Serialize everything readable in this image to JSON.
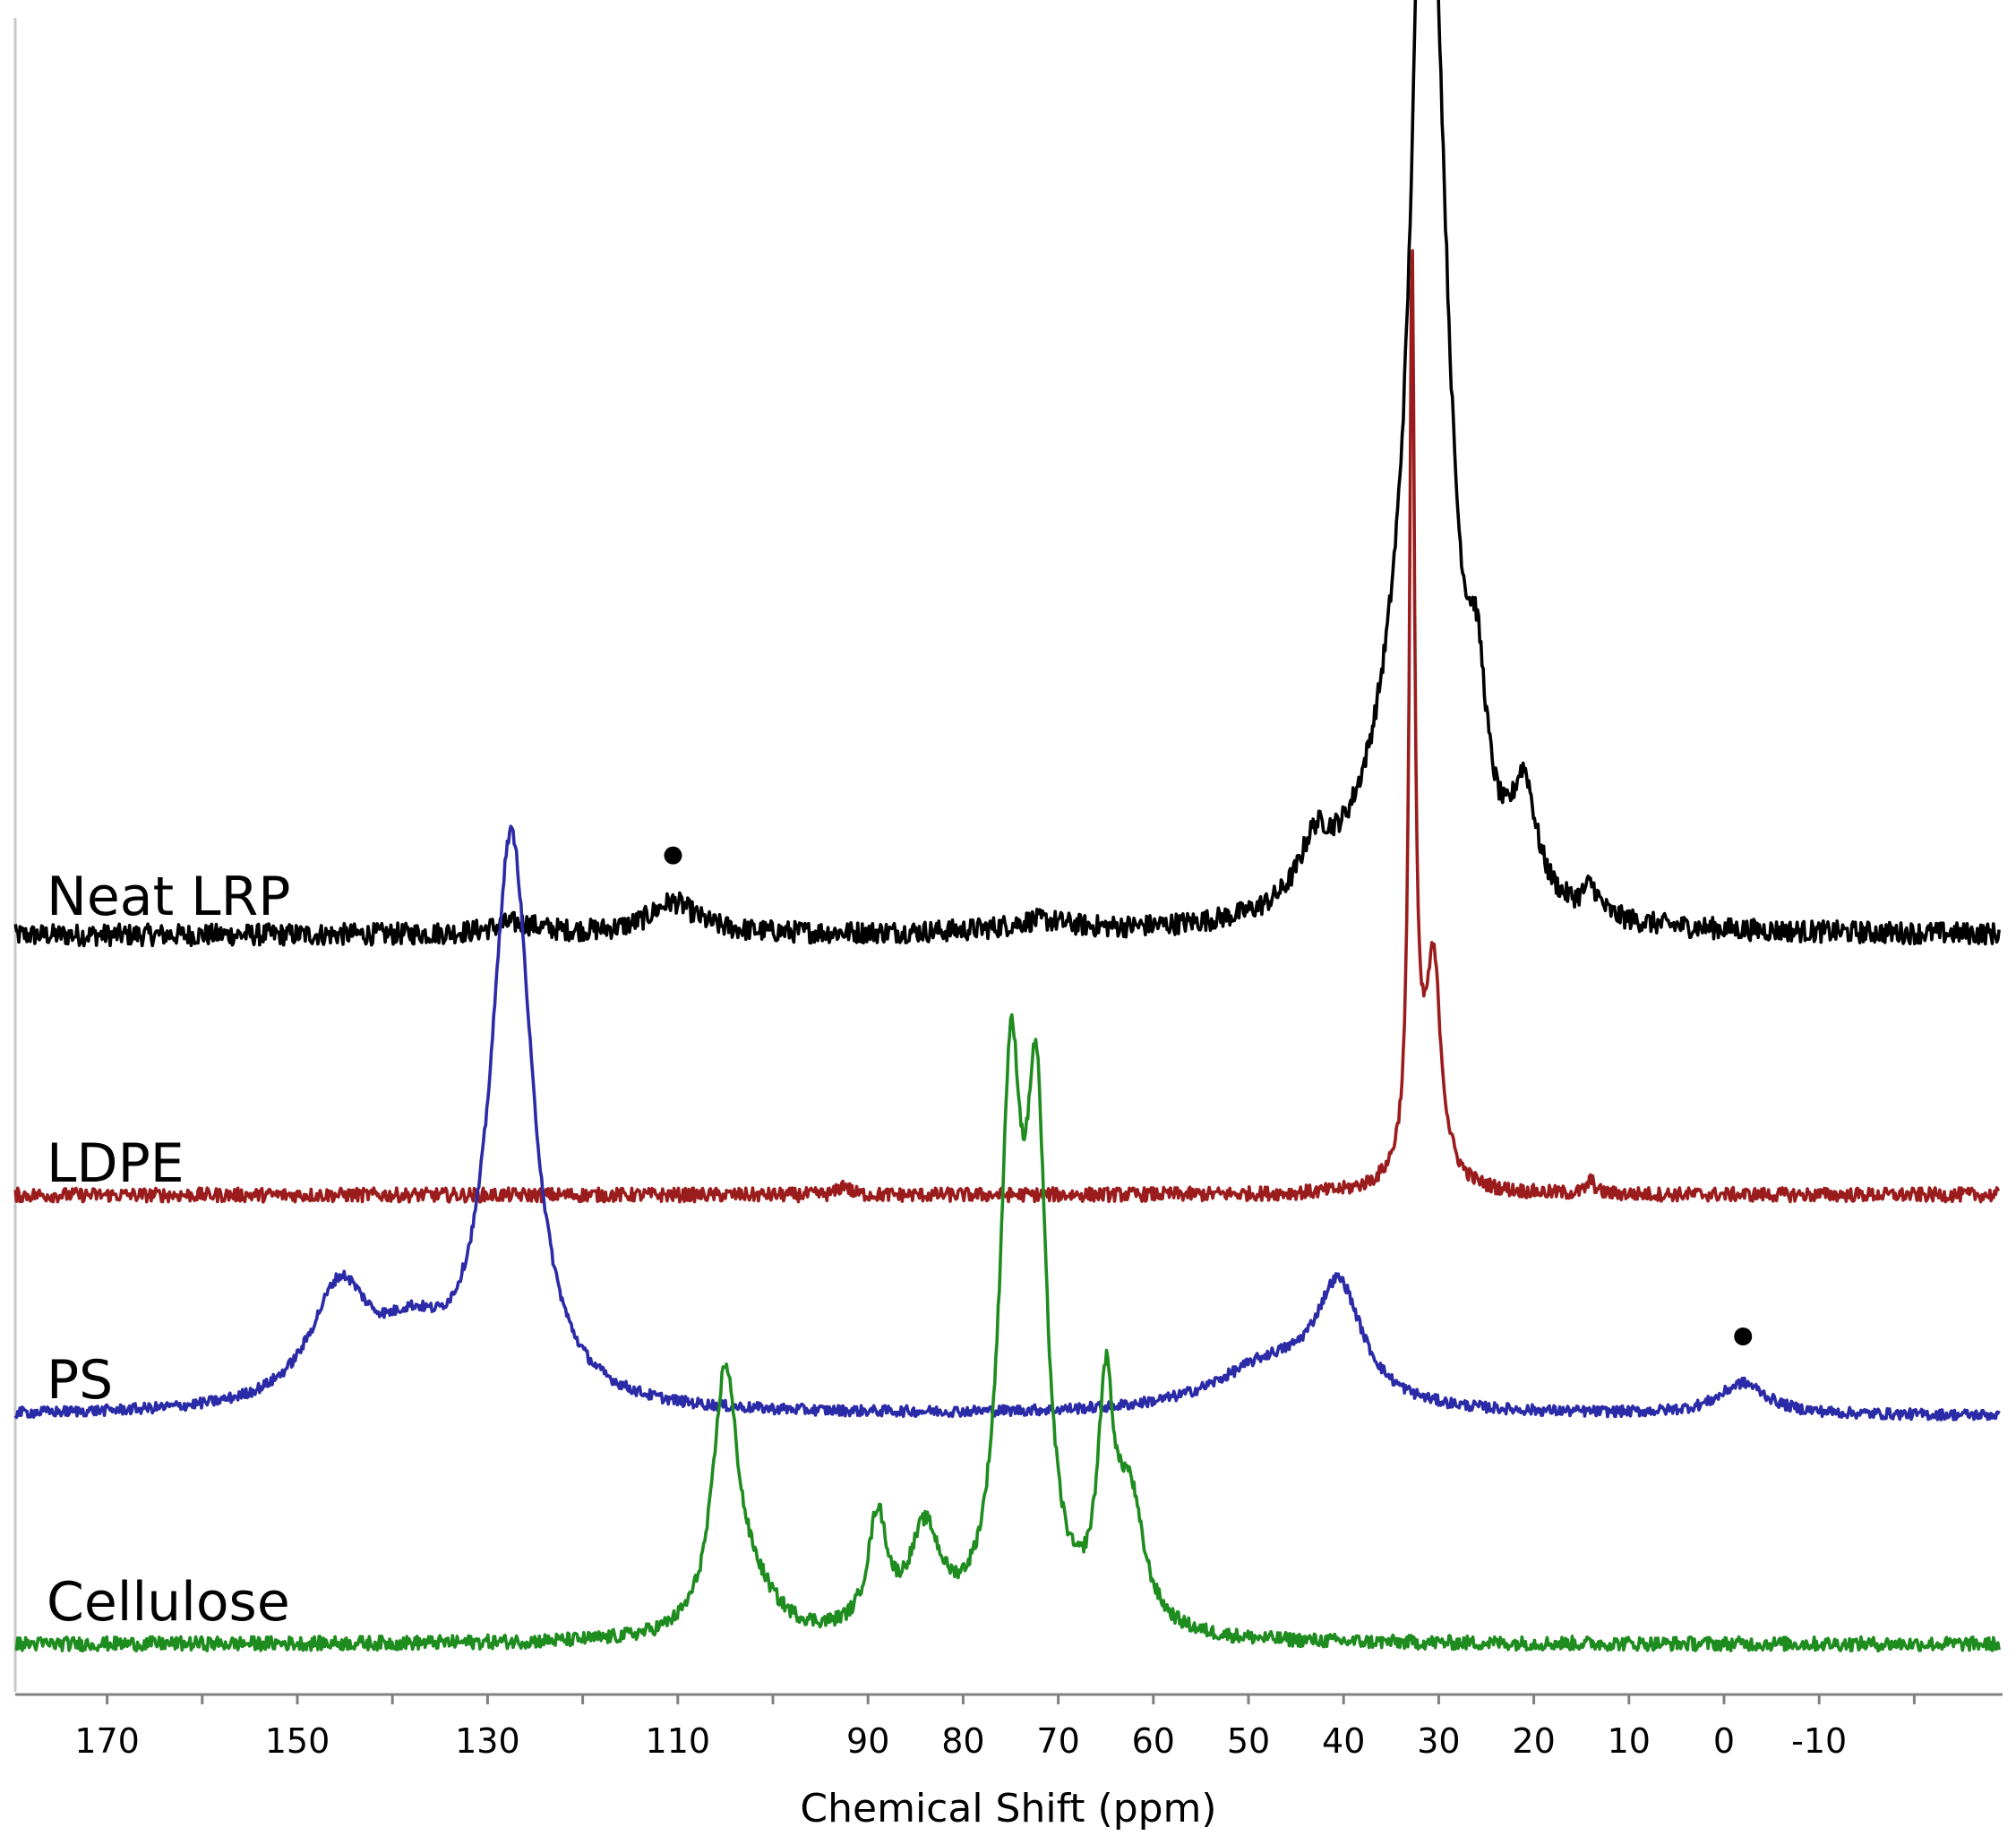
{
  "chart_data": {
    "type": "line",
    "title": "",
    "xlabel": "Chemical Shift (ppm)",
    "ylabel": "",
    "xlim": [
      180,
      -30
    ],
    "x_reversed": true,
    "grid": false,
    "legend": "none",
    "tick_labels": [
      "170",
      "150",
      "130",
      "110",
      "90",
      "80",
      "70",
      "60",
      "50",
      "40",
      "30",
      "20",
      "10",
      "0",
      "-10"
    ],
    "tick_values": [
      170,
      150,
      130,
      110,
      90,
      80,
      70,
      60,
      50,
      40,
      30,
      20,
      10,
      0,
      -10
    ],
    "series": [
      {
        "name": "Neat LRP",
        "color": "#000000",
        "noise": 0.012,
        "peaks": [
          {
            "center": 31.5,
            "height": 1.0,
            "width": 1.6
          },
          {
            "center": 30.0,
            "height": 0.42,
            "width": 2.0
          },
          {
            "center": 34.5,
            "height": 0.12,
            "width": 3.5
          },
          {
            "center": 26.0,
            "height": 0.16,
            "width": 1.3
          },
          {
            "center": 21.0,
            "height": 0.12,
            "width": 1.5
          },
          {
            "center": 14.0,
            "height": 0.03,
            "width": 1.0
          },
          {
            "center": 43.0,
            "height": 0.06,
            "width": 2.0
          },
          {
            "center": 38.0,
            "height": 0.03,
            "width": 5.0
          },
          {
            "center": 110.5,
            "height": 0.035,
            "width": 3.0
          },
          {
            "center": 127.0,
            "height": 0.012,
            "width": 3.0
          },
          {
            "center": 72.0,
            "height": 0.012,
            "width": 4.0
          }
        ]
      },
      {
        "name": "LDPE",
        "color": "#9b1c1c",
        "noise": 0.008,
        "peaks": [
          {
            "center": 32.8,
            "height": 1.0,
            "width": 0.32
          },
          {
            "center": 30.5,
            "height": 0.21,
            "width": 0.9
          },
          {
            "center": 31.8,
            "height": 0.08,
            "width": 1.8
          },
          {
            "center": 14.0,
            "height": 0.015,
            "width": 0.5
          },
          {
            "center": 92.5,
            "height": 0.012,
            "width": 0.6
          }
        ]
      },
      {
        "name": "PS",
        "color": "#2b2ba8",
        "noise": 0.006,
        "peaks": [
          {
            "center": 127.5,
            "height": 0.64,
            "width": 2.6
          },
          {
            "center": 145.5,
            "height": 0.13,
            "width": 3.8
          },
          {
            "center": 138.0,
            "height": 0.06,
            "width": 4.0
          },
          {
            "center": 40.5,
            "height": 0.13,
            "width": 3.0
          },
          {
            "center": 48.0,
            "height": 0.05,
            "width": 7.0
          },
          {
            "center": -2.0,
            "height": 0.035,
            "width": 3.0
          }
        ]
      },
      {
        "name": "Cellulose",
        "color": "#1e8c1e",
        "noise": 0.01,
        "peaks": [
          {
            "center": 105.0,
            "height": 0.37,
            "width": 1.6
          },
          {
            "center": 102.0,
            "height": 0.05,
            "width": 3.0
          },
          {
            "center": 89.0,
            "height": 0.16,
            "width": 1.2
          },
          {
            "center": 84.0,
            "height": 0.14,
            "width": 2.0
          },
          {
            "center": 75.0,
            "height": 0.74,
            "width": 1.4
          },
          {
            "center": 72.3,
            "height": 0.68,
            "width": 1.3
          },
          {
            "center": 65.0,
            "height": 0.31,
            "width": 1.0
          },
          {
            "center": 62.5,
            "height": 0.18,
            "width": 1.8
          }
        ]
      }
    ],
    "annotations": [
      {
        "type": "dot",
        "series": "Neat LRP",
        "x": 110.5
      },
      {
        "type": "dot",
        "series": "PS",
        "x": -2.0
      }
    ]
  },
  "labels": {
    "neat_lrp": "Neat LRP",
    "ldpe": "LDPE",
    "ps": "PS",
    "cellulose": "Cellulose",
    "xlabel": "Chemical Shift (ppm)"
  }
}
